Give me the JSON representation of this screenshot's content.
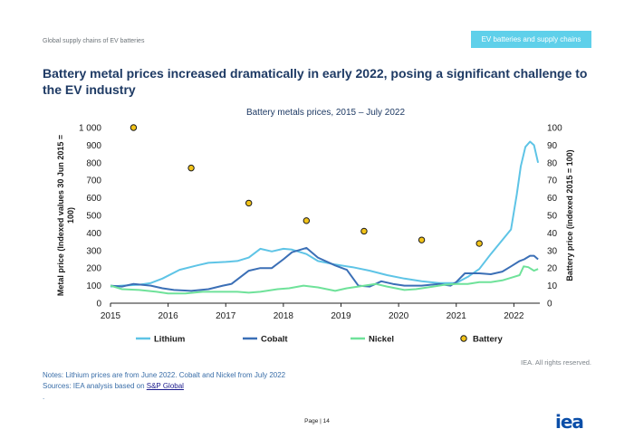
{
  "header": {
    "left_text": "Global supply chains of EV batteries",
    "tab_label": "EV batteries and supply chains"
  },
  "headline": "Battery metal prices increased dramatically in early 2022, posing a significant challenge to the EV industry",
  "chart_data": {
    "type": "line",
    "title": "Battery metals prices, 2015 – July 2022",
    "ylabel": "Metal price (Indexed values 30 Jun 2015 = 100)",
    "y2label": "Battery price (indexed 2015 = 100)",
    "xlim": [
      2015.0,
      2022.45
    ],
    "ylim": [
      0,
      1000
    ],
    "y2lim": [
      0,
      100
    ],
    "x_ticks": [
      2015,
      2016,
      2017,
      2018,
      2019,
      2020,
      2021,
      2022
    ],
    "y_ticks": [
      0,
      100,
      200,
      300,
      400,
      500,
      600,
      700,
      800,
      900,
      1000
    ],
    "y_tick_labels": [
      "0",
      "100",
      "200",
      "300",
      "400",
      "500",
      "600",
      "700",
      "800",
      "900",
      "1 000"
    ],
    "y2_ticks": [
      0,
      10,
      20,
      30,
      40,
      50,
      60,
      70,
      80,
      90,
      100
    ],
    "legend_position": "bottom",
    "series": [
      {
        "name": "Lithium",
        "color": "#5ec4e6",
        "axis": "left",
        "x": [
          2015.0,
          2015.2,
          2015.5,
          2015.7,
          2015.9,
          2016.2,
          2016.5,
          2016.7,
          2017.0,
          2017.2,
          2017.4,
          2017.6,
          2017.8,
          2018.0,
          2018.15,
          2018.4,
          2018.6,
          2018.9,
          2019.2,
          2019.5,
          2019.8,
          2020.1,
          2020.4,
          2020.7,
          2021.0,
          2021.2,
          2021.4,
          2021.6,
          2021.8,
          2021.95,
          2022.05,
          2022.12,
          2022.2,
          2022.28,
          2022.35,
          2022.42
        ],
        "y": [
          95,
          100,
          105,
          115,
          140,
          190,
          215,
          230,
          235,
          240,
          260,
          310,
          295,
          310,
          305,
          280,
          240,
          220,
          205,
          185,
          160,
          140,
          125,
          115,
          115,
          150,
          195,
          280,
          360,
          420,
          620,
          780,
          890,
          920,
          900,
          800
        ]
      },
      {
        "name": "Cobalt",
        "color": "#3b6fb6",
        "axis": "left",
        "x": [
          2015.0,
          2015.2,
          2015.4,
          2015.7,
          2015.9,
          2016.1,
          2016.4,
          2016.7,
          2016.95,
          2017.1,
          2017.4,
          2017.6,
          2017.8,
          2018.0,
          2018.15,
          2018.4,
          2018.6,
          2018.9,
          2019.1,
          2019.3,
          2019.5,
          2019.7,
          2019.9,
          2020.1,
          2020.4,
          2020.7,
          2020.9,
          2021.0,
          2021.15,
          2021.4,
          2021.6,
          2021.8,
          2021.95,
          2022.1,
          2022.18,
          2022.28,
          2022.35,
          2022.42
        ],
        "y": [
          100,
          95,
          110,
          100,
          85,
          75,
          70,
          80,
          100,
          110,
          185,
          200,
          200,
          250,
          290,
          315,
          260,
          215,
          190,
          100,
          95,
          125,
          110,
          100,
          100,
          110,
          100,
          120,
          170,
          170,
          165,
          180,
          210,
          240,
          250,
          270,
          270,
          250
        ]
      },
      {
        "name": "Nickel",
        "color": "#6fe29a",
        "axis": "left",
        "x": [
          2015.0,
          2015.2,
          2015.5,
          2015.8,
          2016.0,
          2016.3,
          2016.6,
          2016.9,
          2017.2,
          2017.4,
          2017.6,
          2017.9,
          2018.1,
          2018.35,
          2018.6,
          2018.9,
          2019.1,
          2019.3,
          2019.6,
          2019.8,
          2020.1,
          2020.3,
          2020.6,
          2020.8,
          2021.0,
          2021.2,
          2021.4,
          2021.6,
          2021.8,
          2022.0,
          2022.1,
          2022.17,
          2022.25,
          2022.35,
          2022.42
        ],
        "y": [
          100,
          80,
          75,
          65,
          55,
          55,
          65,
          65,
          65,
          60,
          65,
          80,
          85,
          100,
          90,
          70,
          85,
          95,
          110,
          95,
          75,
          80,
          95,
          105,
          110,
          110,
          120,
          120,
          130,
          150,
          160,
          210,
          205,
          185,
          195
        ]
      },
      {
        "name": "Battery",
        "color": "#f2c319",
        "axis": "right",
        "type": "scatter",
        "x": [
          2015.4,
          2016.4,
          2017.4,
          2018.4,
          2019.4,
          2020.4,
          2021.4
        ],
        "y": [
          100,
          77,
          57,
          47,
          41,
          36,
          34
        ]
      }
    ]
  },
  "notes": {
    "line1": "Notes: Lithium prices are from June 2022. Cobalt and Nickel from July 2022",
    "line2_prefix": "Sources: IEA analysis based on ",
    "line2_link": "S&P Global",
    "line3": "."
  },
  "rights": "IEA. All rights reserved.",
  "footer": {
    "page_label": "Page | 14",
    "logo_text": "iea"
  }
}
